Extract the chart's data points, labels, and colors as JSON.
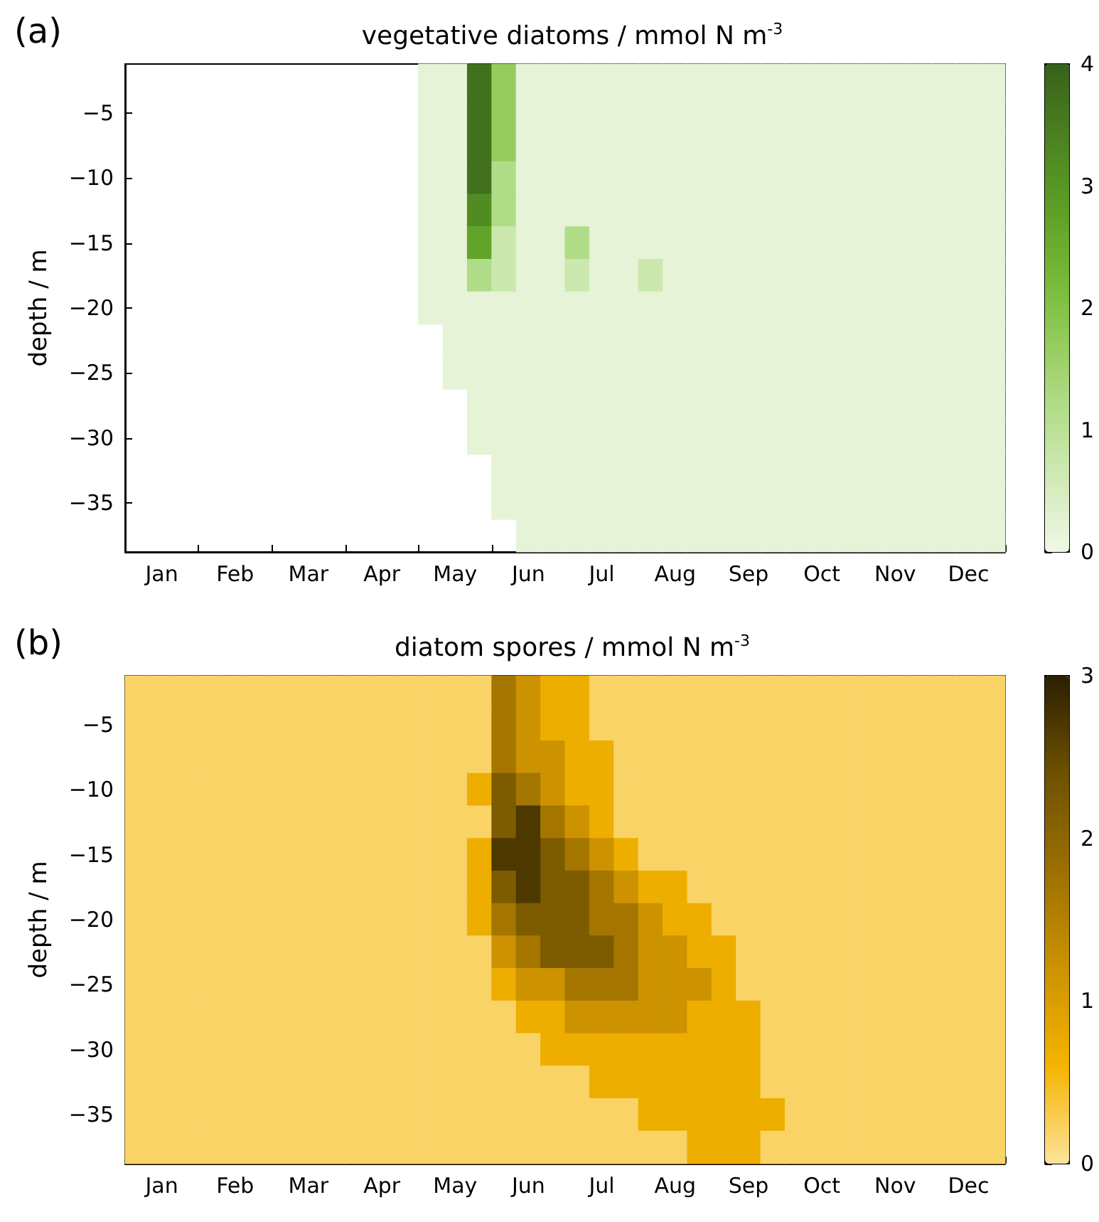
{
  "chart_data": [
    {
      "type": "heatmap",
      "title": "vegetative diatoms / mmol N m$^{-3}$",
      "ylabel": "depth / m",
      "annotations": [
        "(a)"
      ],
      "categories": [
        null,
        "Jan",
        null,
        null,
        "Feb",
        null,
        null,
        "Mar",
        null,
        null,
        "Apr",
        null,
        null,
        "May",
        null,
        null,
        "Jun",
        null,
        null,
        "Jul",
        null,
        null,
        "Aug",
        null,
        null,
        "Sep",
        null,
        null,
        "Oct",
        null,
        null,
        "Nov",
        null,
        null,
        "Dec",
        null
      ],
      "y_categories": [
        null,
        "−5",
        null,
        "−10",
        null,
        "−15",
        null,
        "−20",
        null,
        "−25",
        null,
        "−30",
        null,
        "−35",
        null
      ],
      "colors": [
        "#f0f8e6",
        "#d2ebb9",
        "#b3de8c",
        "#94cc5c",
        "#74b735",
        "#5b9d24",
        "#4b8020",
        "#36611a"
      ],
      "clim": [
        0,
        4
      ],
      "cticks": [
        0,
        1,
        2,
        3,
        4
      ],
      "grid": false,
      "cells": [
        [
          null,
          null,
          null,
          null,
          null,
          null,
          null,
          null,
          null,
          null,
          null,
          null,
          0.2,
          0.2,
          3.7,
          1.7,
          0.2,
          0.2,
          0.2,
          0.2,
          0.2,
          0.2,
          0.2,
          0.2,
          0.2,
          0.2,
          0.2,
          0.2,
          0.2,
          0.2,
          0.2,
          0.2,
          0.2,
          0.2,
          0.2,
          0.2
        ],
        [
          null,
          null,
          null,
          null,
          null,
          null,
          null,
          null,
          null,
          null,
          null,
          null,
          0.2,
          0.2,
          3.7,
          1.7,
          0.2,
          0.2,
          0.2,
          0.2,
          0.2,
          0.2,
          0.2,
          0.2,
          0.2,
          0.2,
          0.2,
          0.2,
          0.2,
          0.2,
          0.2,
          0.2,
          0.2,
          0.2,
          0.2,
          0.2
        ],
        [
          null,
          null,
          null,
          null,
          null,
          null,
          null,
          null,
          null,
          null,
          null,
          null,
          0.2,
          0.2,
          3.7,
          1.7,
          0.2,
          0.2,
          0.2,
          0.2,
          0.2,
          0.2,
          0.2,
          0.2,
          0.2,
          0.2,
          0.2,
          0.2,
          0.2,
          0.2,
          0.2,
          0.2,
          0.2,
          0.2,
          0.2,
          0.2
        ],
        [
          null,
          null,
          null,
          null,
          null,
          null,
          null,
          null,
          null,
          null,
          null,
          null,
          0.2,
          0.2,
          3.7,
          1.2,
          0.2,
          0.2,
          0.2,
          0.2,
          0.2,
          0.2,
          0.2,
          0.2,
          0.2,
          0.2,
          0.2,
          0.2,
          0.2,
          0.2,
          0.2,
          0.2,
          0.2,
          0.2,
          0.2,
          0.2
        ],
        [
          null,
          null,
          null,
          null,
          null,
          null,
          null,
          null,
          null,
          null,
          null,
          null,
          0.2,
          0.2,
          3.2,
          1.2,
          0.2,
          0.2,
          0.2,
          0.2,
          0.2,
          0.2,
          0.2,
          0.2,
          0.2,
          0.2,
          0.2,
          0.2,
          0.2,
          0.2,
          0.2,
          0.2,
          0.2,
          0.2,
          0.2,
          0.2
        ],
        [
          null,
          null,
          null,
          null,
          null,
          null,
          null,
          null,
          null,
          null,
          null,
          null,
          0.2,
          0.2,
          2.7,
          0.7,
          0.2,
          0.2,
          1.2,
          0.2,
          0.2,
          0.2,
          0.2,
          0.2,
          0.2,
          0.2,
          0.2,
          0.2,
          0.2,
          0.2,
          0.2,
          0.2,
          0.2,
          0.2,
          0.2,
          0.2
        ],
        [
          null,
          null,
          null,
          null,
          null,
          null,
          null,
          null,
          null,
          null,
          null,
          null,
          0.2,
          0.2,
          1.2,
          0.7,
          0.2,
          0.2,
          0.7,
          0.2,
          0.2,
          0.7,
          0.2,
          0.2,
          0.2,
          0.2,
          0.2,
          0.2,
          0.2,
          0.2,
          0.2,
          0.2,
          0.2,
          0.2,
          0.2,
          0.2
        ],
        [
          null,
          null,
          null,
          null,
          null,
          null,
          null,
          null,
          null,
          null,
          null,
          null,
          0.2,
          0.2,
          0.2,
          0.2,
          0.2,
          0.2,
          0.2,
          0.2,
          0.2,
          0.2,
          0.2,
          0.2,
          0.2,
          0.2,
          0.2,
          0.2,
          0.2,
          0.2,
          0.2,
          0.2,
          0.2,
          0.2,
          0.2,
          0.2
        ],
        [
          null,
          null,
          null,
          null,
          null,
          null,
          null,
          null,
          null,
          null,
          null,
          null,
          null,
          0.2,
          0.2,
          0.2,
          0.2,
          0.2,
          0.2,
          0.2,
          0.2,
          0.2,
          0.2,
          0.2,
          0.2,
          0.2,
          0.2,
          0.2,
          0.2,
          0.2,
          0.2,
          0.2,
          0.2,
          0.2,
          0.2,
          0.2
        ],
        [
          null,
          null,
          null,
          null,
          null,
          null,
          null,
          null,
          null,
          null,
          null,
          null,
          null,
          0.2,
          0.2,
          0.2,
          0.2,
          0.2,
          0.2,
          0.2,
          0.2,
          0.2,
          0.2,
          0.2,
          0.2,
          0.2,
          0.2,
          0.2,
          0.2,
          0.2,
          0.2,
          0.2,
          0.2,
          0.2,
          0.2,
          0.2
        ],
        [
          null,
          null,
          null,
          null,
          null,
          null,
          null,
          null,
          null,
          null,
          null,
          null,
          null,
          null,
          0.2,
          0.2,
          0.2,
          0.2,
          0.2,
          0.2,
          0.2,
          0.2,
          0.2,
          0.2,
          0.2,
          0.2,
          0.2,
          0.2,
          0.2,
          0.2,
          0.2,
          0.2,
          0.2,
          0.2,
          0.2,
          0.2
        ],
        [
          null,
          null,
          null,
          null,
          null,
          null,
          null,
          null,
          null,
          null,
          null,
          null,
          null,
          null,
          0.2,
          0.2,
          0.2,
          0.2,
          0.2,
          0.2,
          0.2,
          0.2,
          0.2,
          0.2,
          0.2,
          0.2,
          0.2,
          0.2,
          0.2,
          0.2,
          0.2,
          0.2,
          0.2,
          0.2,
          0.2,
          0.2
        ],
        [
          null,
          null,
          null,
          null,
          null,
          null,
          null,
          null,
          null,
          null,
          null,
          null,
          null,
          null,
          null,
          0.2,
          0.2,
          0.2,
          0.2,
          0.2,
          0.2,
          0.2,
          0.2,
          0.2,
          0.2,
          0.2,
          0.2,
          0.2,
          0.2,
          0.2,
          0.2,
          0.2,
          0.2,
          0.2,
          0.2,
          0.2
        ],
        [
          null,
          null,
          null,
          null,
          null,
          null,
          null,
          null,
          null,
          null,
          null,
          null,
          null,
          null,
          null,
          0.2,
          0.2,
          0.2,
          0.2,
          0.2,
          0.2,
          0.2,
          0.2,
          0.2,
          0.2,
          0.2,
          0.2,
          0.2,
          0.2,
          0.2,
          0.2,
          0.2,
          0.2,
          0.2,
          0.2,
          0.2
        ],
        [
          null,
          null,
          null,
          null,
          null,
          null,
          null,
          null,
          null,
          null,
          null,
          null,
          null,
          null,
          null,
          null,
          0.2,
          0.2,
          0.2,
          0.2,
          0.2,
          0.2,
          0.2,
          0.2,
          0.2,
          0.2,
          0.2,
          0.2,
          0.2,
          0.2,
          0.2,
          0.2,
          0.2,
          0.2,
          0.2,
          0.2
        ]
      ]
    },
    {
      "type": "heatmap",
      "title": "diatom spores / mmol N m$^{-3}$",
      "ylabel": "depth / m",
      "annotations": [
        "(b)"
      ],
      "categories": [
        null,
        "Jan",
        null,
        null,
        "Feb",
        null,
        null,
        "Mar",
        null,
        null,
        "Apr",
        null,
        null,
        "May",
        null,
        null,
        "Jun",
        null,
        null,
        "Jul",
        null,
        null,
        "Aug",
        null,
        null,
        "Sep",
        null,
        null,
        "Oct",
        null,
        null,
        "Nov",
        null,
        null,
        "Dec",
        null
      ],
      "y_categories": [
        null,
        "−5",
        null,
        "−10",
        null,
        "−15",
        null,
        "−20",
        null,
        "−25",
        null,
        "−30",
        null,
        "−35",
        null
      ],
      "colors": [
        "#fde39a",
        "#f4b400",
        "#cc9200",
        "#9c7000",
        "#6e5100",
        "#2b1f00"
      ],
      "clim": [
        0,
        3
      ],
      "cticks": [
        0,
        1,
        2,
        3
      ],
      "grid": false,
      "cells": [
        [
          0.2,
          0.2,
          0.2,
          0.2,
          0.2,
          0.2,
          0.2,
          0.2,
          0.2,
          0.2,
          0.2,
          0.2,
          0.2,
          0.2,
          0.2,
          1.7,
          1.2,
          0.7,
          0.7,
          0.2,
          0.2,
          0.2,
          0.2,
          0.2,
          0.2,
          0.2,
          0.2,
          0.2,
          0.2,
          0.2,
          0.2,
          0.2,
          0.2,
          0.2,
          0.2,
          0.2
        ],
        [
          0.2,
          0.2,
          0.2,
          0.2,
          0.2,
          0.2,
          0.2,
          0.2,
          0.2,
          0.2,
          0.2,
          0.2,
          0.2,
          0.2,
          0.2,
          1.7,
          1.2,
          0.7,
          0.7,
          0.2,
          0.2,
          0.2,
          0.2,
          0.2,
          0.2,
          0.2,
          0.2,
          0.2,
          0.2,
          0.2,
          0.2,
          0.2,
          0.2,
          0.2,
          0.2,
          0.2
        ],
        [
          0.2,
          0.2,
          0.2,
          0.2,
          0.2,
          0.2,
          0.2,
          0.2,
          0.2,
          0.2,
          0.2,
          0.2,
          0.2,
          0.2,
          0.2,
          1.7,
          1.2,
          1.2,
          0.7,
          0.7,
          0.2,
          0.2,
          0.2,
          0.2,
          0.2,
          0.2,
          0.2,
          0.2,
          0.2,
          0.2,
          0.2,
          0.2,
          0.2,
          0.2,
          0.2,
          0.2
        ],
        [
          0.2,
          0.2,
          0.2,
          0.2,
          0.2,
          0.2,
          0.2,
          0.2,
          0.2,
          0.2,
          0.2,
          0.2,
          0.2,
          0.2,
          0.7,
          2.2,
          1.7,
          1.2,
          0.7,
          0.7,
          0.2,
          0.2,
          0.2,
          0.2,
          0.2,
          0.2,
          0.2,
          0.2,
          0.2,
          0.2,
          0.2,
          0.2,
          0.2,
          0.2,
          0.2,
          0.2
        ],
        [
          0.2,
          0.2,
          0.2,
          0.2,
          0.2,
          0.2,
          0.2,
          0.2,
          0.2,
          0.2,
          0.2,
          0.2,
          0.2,
          0.2,
          0.2,
          2.2,
          2.7,
          1.7,
          1.2,
          0.7,
          0.2,
          0.2,
          0.2,
          0.2,
          0.2,
          0.2,
          0.2,
          0.2,
          0.2,
          0.2,
          0.2,
          0.2,
          0.2,
          0.2,
          0.2,
          0.2
        ],
        [
          0.2,
          0.2,
          0.2,
          0.2,
          0.2,
          0.2,
          0.2,
          0.2,
          0.2,
          0.2,
          0.2,
          0.2,
          0.2,
          0.2,
          0.7,
          2.7,
          2.7,
          2.2,
          1.7,
          1.2,
          0.7,
          0.2,
          0.2,
          0.2,
          0.2,
          0.2,
          0.2,
          0.2,
          0.2,
          0.2,
          0.2,
          0.2,
          0.2,
          0.2,
          0.2,
          0.2
        ],
        [
          0.2,
          0.2,
          0.2,
          0.2,
          0.2,
          0.2,
          0.2,
          0.2,
          0.2,
          0.2,
          0.2,
          0.2,
          0.2,
          0.2,
          0.7,
          2.2,
          2.7,
          2.2,
          2.2,
          1.7,
          1.2,
          0.7,
          0.7,
          0.2,
          0.2,
          0.2,
          0.2,
          0.2,
          0.2,
          0.2,
          0.2,
          0.2,
          0.2,
          0.2,
          0.2,
          0.2
        ],
        [
          0.2,
          0.2,
          0.2,
          0.2,
          0.2,
          0.2,
          0.2,
          0.2,
          0.2,
          0.2,
          0.2,
          0.2,
          0.2,
          0.2,
          0.7,
          1.7,
          2.2,
          2.2,
          2.2,
          1.7,
          1.7,
          1.2,
          0.7,
          0.7,
          0.2,
          0.2,
          0.2,
          0.2,
          0.2,
          0.2,
          0.2,
          0.2,
          0.2,
          0.2,
          0.2,
          0.2
        ],
        [
          0.2,
          0.2,
          0.2,
          0.2,
          0.2,
          0.2,
          0.2,
          0.2,
          0.2,
          0.2,
          0.2,
          0.2,
          0.2,
          0.2,
          0.2,
          1.2,
          1.7,
          2.2,
          2.2,
          2.2,
          1.7,
          1.2,
          1.2,
          0.7,
          0.7,
          0.2,
          0.2,
          0.2,
          0.2,
          0.2,
          0.2,
          0.2,
          0.2,
          0.2,
          0.2,
          0.2
        ],
        [
          0.2,
          0.2,
          0.2,
          0.2,
          0.2,
          0.2,
          0.2,
          0.2,
          0.2,
          0.2,
          0.2,
          0.2,
          0.2,
          0.2,
          0.2,
          0.7,
          1.2,
          1.2,
          1.7,
          1.7,
          1.7,
          1.2,
          1.2,
          1.2,
          0.7,
          0.2,
          0.2,
          0.2,
          0.2,
          0.2,
          0.2,
          0.2,
          0.2,
          0.2,
          0.2,
          0.2
        ],
        [
          0.2,
          0.2,
          0.2,
          0.2,
          0.2,
          0.2,
          0.2,
          0.2,
          0.2,
          0.2,
          0.2,
          0.2,
          0.2,
          0.2,
          0.2,
          0.2,
          0.7,
          0.7,
          1.2,
          1.2,
          1.2,
          1.2,
          1.2,
          0.7,
          0.7,
          0.7,
          0.2,
          0.2,
          0.2,
          0.2,
          0.2,
          0.2,
          0.2,
          0.2,
          0.2,
          0.2
        ],
        [
          0.2,
          0.2,
          0.2,
          0.2,
          0.2,
          0.2,
          0.2,
          0.2,
          0.2,
          0.2,
          0.2,
          0.2,
          0.2,
          0.2,
          0.2,
          0.2,
          0.2,
          0.7,
          0.7,
          0.7,
          0.7,
          0.7,
          0.7,
          0.7,
          0.7,
          0.7,
          0.2,
          0.2,
          0.2,
          0.2,
          0.2,
          0.2,
          0.2,
          0.2,
          0.2,
          0.2
        ],
        [
          0.2,
          0.2,
          0.2,
          0.2,
          0.2,
          0.2,
          0.2,
          0.2,
          0.2,
          0.2,
          0.2,
          0.2,
          0.2,
          0.2,
          0.2,
          0.2,
          0.2,
          0.2,
          0.2,
          0.7,
          0.7,
          0.7,
          0.7,
          0.7,
          0.7,
          0.7,
          0.2,
          0.2,
          0.2,
          0.2,
          0.2,
          0.2,
          0.2,
          0.2,
          0.2,
          0.2
        ],
        [
          0.2,
          0.2,
          0.2,
          0.2,
          0.2,
          0.2,
          0.2,
          0.2,
          0.2,
          0.2,
          0.2,
          0.2,
          0.2,
          0.2,
          0.2,
          0.2,
          0.2,
          0.2,
          0.2,
          0.2,
          0.2,
          0.7,
          0.7,
          0.7,
          0.7,
          0.7,
          0.7,
          0.2,
          0.2,
          0.2,
          0.2,
          0.2,
          0.2,
          0.2,
          0.2,
          0.2
        ],
        [
          0.2,
          0.2,
          0.2,
          0.2,
          0.2,
          0.2,
          0.2,
          0.2,
          0.2,
          0.2,
          0.2,
          0.2,
          0.2,
          0.2,
          0.2,
          0.2,
          0.2,
          0.2,
          0.2,
          0.2,
          0.2,
          0.2,
          0.2,
          0.7,
          0.7,
          0.7,
          0.2,
          0.2,
          0.2,
          0.2,
          0.2,
          0.2,
          0.2,
          0.2,
          0.2,
          0.2
        ]
      ]
    }
  ]
}
